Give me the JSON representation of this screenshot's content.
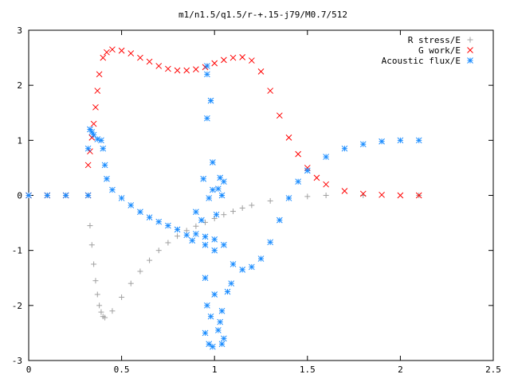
{
  "chart_data": {
    "type": "scatter",
    "title": "m1/n1.5/q1.5/r-+.15-j79/M0.7/512",
    "xlabel": "",
    "ylabel": "",
    "xlim": [
      0,
      2.5
    ],
    "ylim": [
      -3,
      3
    ],
    "x_ticks": [
      "0",
      "0.5",
      "1",
      "1.5",
      "2",
      "2.5"
    ],
    "y_ticks": [
      "3",
      "2",
      "1",
      "0",
      "-1",
      "-2",
      "-3"
    ],
    "grid": false,
    "legend_position": "top-right",
    "series": [
      {
        "name": "R stress/E",
        "marker": "+",
        "color": "#a0a0a0",
        "points": [
          [
            0,
            0
          ],
          [
            0.1,
            0
          ],
          [
            0.2,
            0
          ],
          [
            0.32,
            0
          ],
          [
            0.33,
            -0.55
          ],
          [
            0.34,
            -0.9
          ],
          [
            0.35,
            -1.25
          ],
          [
            0.36,
            -1.55
          ],
          [
            0.37,
            -1.8
          ],
          [
            0.38,
            -2.0
          ],
          [
            0.39,
            -2.12
          ],
          [
            0.4,
            -2.2
          ],
          [
            0.41,
            -2.22
          ],
          [
            0.45,
            -2.1
          ],
          [
            0.5,
            -1.85
          ],
          [
            0.55,
            -1.6
          ],
          [
            0.6,
            -1.38
          ],
          [
            0.65,
            -1.18
          ],
          [
            0.7,
            -1.0
          ],
          [
            0.75,
            -0.86
          ],
          [
            0.8,
            -0.74
          ],
          [
            0.85,
            -0.64
          ],
          [
            0.9,
            -0.56
          ],
          [
            0.95,
            -0.49
          ],
          [
            1.0,
            -0.42
          ],
          [
            1.05,
            -0.35
          ],
          [
            1.1,
            -0.29
          ],
          [
            1.15,
            -0.23
          ],
          [
            1.2,
            -0.18
          ],
          [
            1.3,
            -0.1
          ],
          [
            1.4,
            -0.05
          ],
          [
            1.5,
            -0.02
          ],
          [
            1.6,
            0
          ],
          [
            1.8,
            0
          ],
          [
            2.1,
            0
          ]
        ]
      },
      {
        "name": "G work/E",
        "marker": "x",
        "color": "#ff0000",
        "points": [
          [
            0,
            0
          ],
          [
            0.1,
            0
          ],
          [
            0.2,
            0
          ],
          [
            0.32,
            0
          ],
          [
            0.32,
            0.55
          ],
          [
            0.33,
            0.8
          ],
          [
            0.34,
            1.05
          ],
          [
            0.35,
            1.3
          ],
          [
            0.36,
            1.6
          ],
          [
            0.37,
            1.9
          ],
          [
            0.38,
            2.2
          ],
          [
            0.4,
            2.5
          ],
          [
            0.42,
            2.6
          ],
          [
            0.45,
            2.65
          ],
          [
            0.5,
            2.63
          ],
          [
            0.55,
            2.58
          ],
          [
            0.6,
            2.5
          ],
          [
            0.65,
            2.43
          ],
          [
            0.7,
            2.35
          ],
          [
            0.75,
            2.3
          ],
          [
            0.8,
            2.27
          ],
          [
            0.85,
            2.27
          ],
          [
            0.9,
            2.29
          ],
          [
            0.95,
            2.33
          ],
          [
            1.0,
            2.4
          ],
          [
            1.05,
            2.46
          ],
          [
            1.1,
            2.5
          ],
          [
            1.15,
            2.51
          ],
          [
            1.2,
            2.45
          ],
          [
            1.25,
            2.25
          ],
          [
            1.3,
            1.9
          ],
          [
            1.35,
            1.45
          ],
          [
            1.4,
            1.05
          ],
          [
            1.45,
            0.75
          ],
          [
            1.5,
            0.5
          ],
          [
            1.55,
            0.32
          ],
          [
            1.6,
            0.2
          ],
          [
            1.7,
            0.08
          ],
          [
            1.8,
            0.03
          ],
          [
            1.9,
            0.01
          ],
          [
            2.0,
            0
          ],
          [
            2.1,
            0
          ]
        ]
      },
      {
        "name": "Acoustic flux/E",
        "marker": "*",
        "color": "#1a8cff",
        "points": [
          [
            0,
            0
          ],
          [
            0.1,
            0
          ],
          [
            0.2,
            0
          ],
          [
            0.32,
            0
          ],
          [
            0.32,
            0.85
          ],
          [
            0.33,
            1.2
          ],
          [
            0.34,
            1.15
          ],
          [
            0.35,
            1.1
          ],
          [
            0.37,
            1.02
          ],
          [
            0.39,
            1.0
          ],
          [
            0.4,
            0.85
          ],
          [
            0.41,
            0.55
          ],
          [
            0.42,
            0.3
          ],
          [
            0.45,
            0.1
          ],
          [
            0.5,
            -0.05
          ],
          [
            0.55,
            -0.18
          ],
          [
            0.6,
            -0.3
          ],
          [
            0.65,
            -0.4
          ],
          [
            0.7,
            -0.48
          ],
          [
            0.75,
            -0.55
          ],
          [
            0.8,
            -0.62
          ],
          [
            0.85,
            -0.72
          ],
          [
            0.88,
            -0.82
          ],
          [
            0.9,
            -0.7
          ],
          [
            0.95,
            -0.75
          ],
          [
            1.0,
            -0.8
          ],
          [
            1.05,
            -0.9
          ],
          [
            1.1,
            -1.25
          ],
          [
            1.15,
            -1.35
          ],
          [
            1.2,
            -1.3
          ],
          [
            1.25,
            -1.15
          ],
          [
            1.3,
            -0.85
          ],
          [
            1.35,
            -0.45
          ],
          [
            1.4,
            -0.05
          ],
          [
            1.45,
            0.25
          ],
          [
            1.5,
            0.45
          ],
          [
            1.6,
            0.7
          ],
          [
            1.7,
            0.85
          ],
          [
            1.8,
            0.93
          ],
          [
            1.9,
            0.98
          ],
          [
            2.0,
            1.0
          ],
          [
            2.1,
            1.0
          ],
          [
            0.96,
            2.35
          ],
          [
            0.96,
            2.2
          ],
          [
            0.98,
            1.72
          ],
          [
            0.96,
            1.4
          ],
          [
            0.99,
            0.6
          ],
          [
            0.94,
            0.3
          ],
          [
            1.03,
            0.32
          ],
          [
            1.05,
            0.25
          ],
          [
            0.99,
            0.1
          ],
          [
            1.02,
            0.12
          ],
          [
            1.04,
            0.0
          ],
          [
            0.97,
            -0.05
          ],
          [
            1.01,
            -0.35
          ],
          [
            0.9,
            -0.3
          ],
          [
            0.93,
            -0.45
          ],
          [
            0.95,
            -0.9
          ],
          [
            1.0,
            -1.0
          ],
          [
            0.95,
            -1.5
          ],
          [
            1.0,
            -1.8
          ],
          [
            0.96,
            -2.0
          ],
          [
            0.98,
            -2.2
          ],
          [
            1.04,
            -2.1
          ],
          [
            1.03,
            -2.3
          ],
          [
            0.95,
            -2.5
          ],
          [
            1.02,
            -2.45
          ],
          [
            1.05,
            -2.6
          ],
          [
            0.97,
            -2.7
          ],
          [
            1.04,
            -2.7
          ],
          [
            0.99,
            -2.75
          ],
          [
            1.07,
            -1.75
          ],
          [
            1.09,
            -1.6
          ]
        ]
      }
    ]
  }
}
